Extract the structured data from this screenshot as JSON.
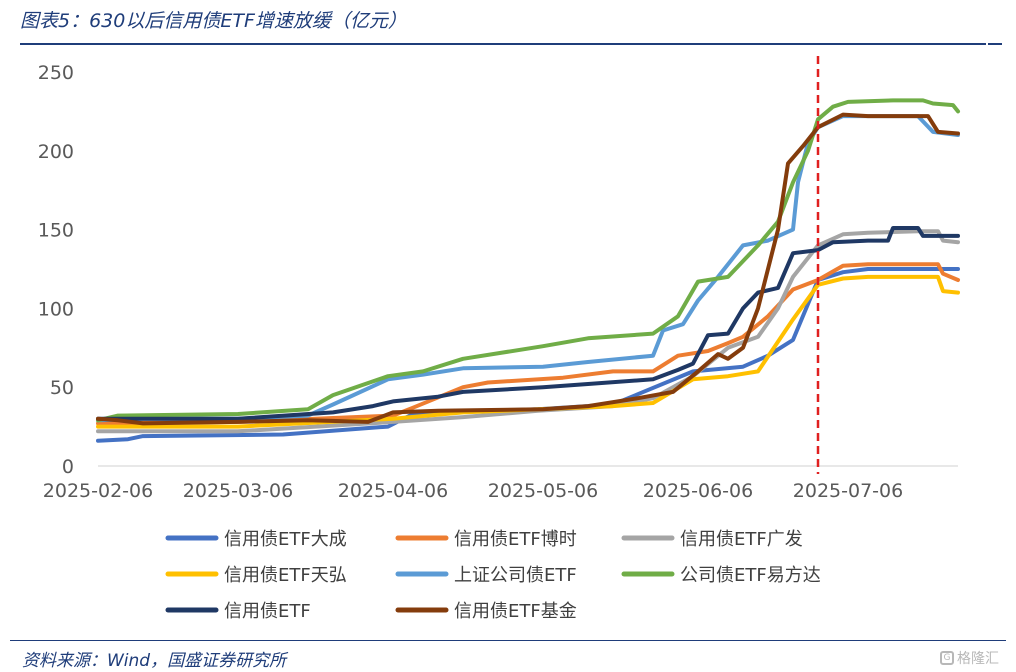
{
  "figure": {
    "title": "图表5：630以后信用债ETF增速放缓（亿元）",
    "source": "资料来源：Wind，国盛证券研究所",
    "watermark_text": "格隆汇"
  },
  "colors": {
    "dark_blue_rule": "#1f3d7a",
    "marker_line": "#e02020"
  },
  "chart_data": {
    "type": "line",
    "title": "",
    "xlabel": "",
    "ylabel": "",
    "x_start": "2025-02-06",
    "x_end": "2025-07-28",
    "ylim": [
      0,
      250
    ],
    "yticks": [
      0,
      50,
      100,
      150,
      200,
      250
    ],
    "xtick_labels": [
      "2025-02-06",
      "2025-03-06",
      "2025-04-06",
      "2025-05-06",
      "2025-06-06",
      "2025-07-06"
    ],
    "grid": false,
    "legend_position": "bottom",
    "vertical_marker": {
      "date": "2025-06-30",
      "style": "dashed",
      "color": "#e02020"
    },
    "series": [
      {
        "name": "信用债ETF大成",
        "color": "#4472c4",
        "points": [
          [
            "2025-02-06",
            16
          ],
          [
            "2025-02-12",
            17
          ],
          [
            "2025-02-15",
            19
          ],
          [
            "2025-03-15",
            20
          ],
          [
            "2025-04-05",
            25
          ],
          [
            "2025-04-10",
            33
          ],
          [
            "2025-04-15",
            34
          ],
          [
            "2025-05-05",
            36
          ],
          [
            "2025-05-20",
            39
          ],
          [
            "2025-06-05",
            60
          ],
          [
            "2025-06-15",
            63
          ],
          [
            "2025-06-20",
            70
          ],
          [
            "2025-06-25",
            80
          ],
          [
            "2025-06-30",
            118
          ],
          [
            "2025-07-05",
            123
          ],
          [
            "2025-07-10",
            125
          ],
          [
            "2025-07-20",
            125
          ],
          [
            "2025-07-28",
            125
          ]
        ]
      },
      {
        "name": "信用债ETF博时",
        "color": "#ed7d31",
        "points": [
          [
            "2025-02-06",
            27
          ],
          [
            "2025-03-06",
            28
          ],
          [
            "2025-04-06",
            32
          ],
          [
            "2025-04-10",
            37
          ],
          [
            "2025-04-20",
            50
          ],
          [
            "2025-04-25",
            53
          ],
          [
            "2025-05-10",
            56
          ],
          [
            "2025-05-20",
            60
          ],
          [
            "2025-05-28",
            60
          ],
          [
            "2025-06-02",
            70
          ],
          [
            "2025-06-08",
            73
          ],
          [
            "2025-06-12",
            78
          ],
          [
            "2025-06-15",
            82
          ],
          [
            "2025-06-20",
            95
          ],
          [
            "2025-06-25",
            112
          ],
          [
            "2025-06-30",
            118
          ],
          [
            "2025-07-05",
            127
          ],
          [
            "2025-07-10",
            128
          ],
          [
            "2025-07-20",
            128
          ],
          [
            "2025-07-24",
            128
          ],
          [
            "2025-07-25",
            122
          ],
          [
            "2025-07-28",
            118
          ]
        ]
      },
      {
        "name": "信用债ETF广发",
        "color": "#a5a5a5",
        "points": [
          [
            "2025-02-06",
            22
          ],
          [
            "2025-03-06",
            22
          ],
          [
            "2025-04-06",
            28
          ],
          [
            "2025-04-20",
            31
          ],
          [
            "2025-05-05",
            35
          ],
          [
            "2025-05-20",
            38
          ],
          [
            "2025-05-28",
            43
          ],
          [
            "2025-06-05",
            57
          ],
          [
            "2025-06-12",
            75
          ],
          [
            "2025-06-18",
            82
          ],
          [
            "2025-06-22",
            100
          ],
          [
            "2025-06-25",
            120
          ],
          [
            "2025-06-30",
            140
          ],
          [
            "2025-07-05",
            147
          ],
          [
            "2025-07-10",
            148
          ],
          [
            "2025-07-20",
            149
          ],
          [
            "2025-07-24",
            149
          ],
          [
            "2025-07-25",
            143
          ],
          [
            "2025-07-28",
            142
          ]
        ]
      },
      {
        "name": "信用债ETF天弘",
        "color": "#ffc000",
        "points": [
          [
            "2025-02-06",
            25
          ],
          [
            "2025-03-06",
            25
          ],
          [
            "2025-04-06",
            30
          ],
          [
            "2025-04-20",
            34
          ],
          [
            "2025-05-05",
            36
          ],
          [
            "2025-05-20",
            38
          ],
          [
            "2025-05-28",
            40
          ],
          [
            "2025-06-05",
            55
          ],
          [
            "2025-06-12",
            57
          ],
          [
            "2025-06-18",
            60
          ],
          [
            "2025-06-25",
            93
          ],
          [
            "2025-06-30",
            115
          ],
          [
            "2025-07-05",
            119
          ],
          [
            "2025-07-10",
            120
          ],
          [
            "2025-07-20",
            120
          ],
          [
            "2025-07-24",
            120
          ],
          [
            "2025-07-25",
            111
          ],
          [
            "2025-07-28",
            110
          ]
        ]
      },
      {
        "name": "上证公司债ETF",
        "color": "#5b9bd5",
        "points": [
          [
            "2025-02-06",
            29
          ],
          [
            "2025-02-15",
            30
          ],
          [
            "2025-03-06",
            30
          ],
          [
            "2025-03-20",
            32
          ],
          [
            "2025-03-25",
            39
          ],
          [
            "2025-04-05",
            55
          ],
          [
            "2025-04-12",
            58
          ],
          [
            "2025-04-20",
            62
          ],
          [
            "2025-05-06",
            63
          ],
          [
            "2025-05-15",
            66
          ],
          [
            "2025-05-28",
            70
          ],
          [
            "2025-05-30",
            86
          ],
          [
            "2025-06-03",
            90
          ],
          [
            "2025-06-06",
            105
          ],
          [
            "2025-06-10",
            120
          ],
          [
            "2025-06-15",
            140
          ],
          [
            "2025-06-20",
            143
          ],
          [
            "2025-06-25",
            150
          ],
          [
            "2025-06-26",
            180
          ],
          [
            "2025-06-28",
            205
          ],
          [
            "2025-06-30",
            215
          ],
          [
            "2025-07-05",
            222
          ],
          [
            "2025-07-10",
            222
          ],
          [
            "2025-07-20",
            222
          ],
          [
            "2025-07-23",
            212
          ],
          [
            "2025-07-28",
            210
          ]
        ]
      },
      {
        "name": "公司债ETF易方达",
        "color": "#70ad47",
        "points": [
          [
            "2025-02-06",
            29
          ],
          [
            "2025-02-10",
            32
          ],
          [
            "2025-03-06",
            33
          ],
          [
            "2025-03-20",
            36
          ],
          [
            "2025-03-25",
            45
          ],
          [
            "2025-04-05",
            57
          ],
          [
            "2025-04-12",
            60
          ],
          [
            "2025-04-20",
            68
          ],
          [
            "2025-04-28",
            72
          ],
          [
            "2025-05-06",
            76
          ],
          [
            "2025-05-15",
            81
          ],
          [
            "2025-05-28",
            84
          ],
          [
            "2025-06-02",
            95
          ],
          [
            "2025-06-06",
            117
          ],
          [
            "2025-06-12",
            120
          ],
          [
            "2025-06-15",
            130
          ],
          [
            "2025-06-18",
            140
          ],
          [
            "2025-06-22",
            155
          ],
          [
            "2025-06-25",
            180
          ],
          [
            "2025-06-28",
            200
          ],
          [
            "2025-06-30",
            220
          ],
          [
            "2025-07-03",
            228
          ],
          [
            "2025-07-06",
            231
          ],
          [
            "2025-07-15",
            232
          ],
          [
            "2025-07-21",
            232
          ],
          [
            "2025-07-23",
            230
          ],
          [
            "2025-07-27",
            229
          ],
          [
            "2025-07-28",
            225
          ]
        ]
      },
      {
        "name": "信用债ETF",
        "color": "#1f3864",
        "points": [
          [
            "2025-02-06",
            30
          ],
          [
            "2025-03-06",
            30
          ],
          [
            "2025-03-25",
            34
          ],
          [
            "2025-04-02",
            38
          ],
          [
            "2025-04-06",
            41
          ],
          [
            "2025-04-15",
            44
          ],
          [
            "2025-04-20",
            47
          ],
          [
            "2025-05-06",
            50
          ],
          [
            "2025-05-15",
            52
          ],
          [
            "2025-05-28",
            55
          ],
          [
            "2025-06-02",
            61
          ],
          [
            "2025-06-05",
            65
          ],
          [
            "2025-06-08",
            83
          ],
          [
            "2025-06-12",
            84
          ],
          [
            "2025-06-15",
            100
          ],
          [
            "2025-06-18",
            110
          ],
          [
            "2025-06-22",
            113
          ],
          [
            "2025-06-25",
            135
          ],
          [
            "2025-06-30",
            137
          ],
          [
            "2025-07-03",
            142
          ],
          [
            "2025-07-10",
            143
          ],
          [
            "2025-07-14",
            143
          ],
          [
            "2025-07-15",
            151
          ],
          [
            "2025-07-20",
            151
          ],
          [
            "2025-07-21",
            146
          ],
          [
            "2025-07-28",
            146
          ]
        ]
      },
      {
        "name": "信用债ETF基金",
        "color": "#843c0c",
        "points": [
          [
            "2025-02-06",
            30
          ],
          [
            "2025-02-10",
            29
          ],
          [
            "2025-02-15",
            27
          ],
          [
            "2025-03-06",
            28
          ],
          [
            "2025-03-20",
            29
          ],
          [
            "2025-04-01",
            28
          ],
          [
            "2025-04-06",
            34
          ],
          [
            "2025-04-15",
            35
          ],
          [
            "2025-05-06",
            36
          ],
          [
            "2025-05-15",
            38
          ],
          [
            "2025-05-25",
            43
          ],
          [
            "2025-06-01",
            47
          ],
          [
            "2025-06-06",
            60
          ],
          [
            "2025-06-10",
            71
          ],
          [
            "2025-06-12",
            68
          ],
          [
            "2025-06-15",
            75
          ],
          [
            "2025-06-18",
            100
          ],
          [
            "2025-06-22",
            150
          ],
          [
            "2025-06-24",
            192
          ],
          [
            "2025-06-27",
            203
          ],
          [
            "2025-06-30",
            215
          ],
          [
            "2025-07-05",
            223
          ],
          [
            "2025-07-10",
            222
          ],
          [
            "2025-07-20",
            222
          ],
          [
            "2025-07-22",
            222
          ],
          [
            "2025-07-24",
            212
          ],
          [
            "2025-07-28",
            211
          ]
        ]
      }
    ]
  }
}
